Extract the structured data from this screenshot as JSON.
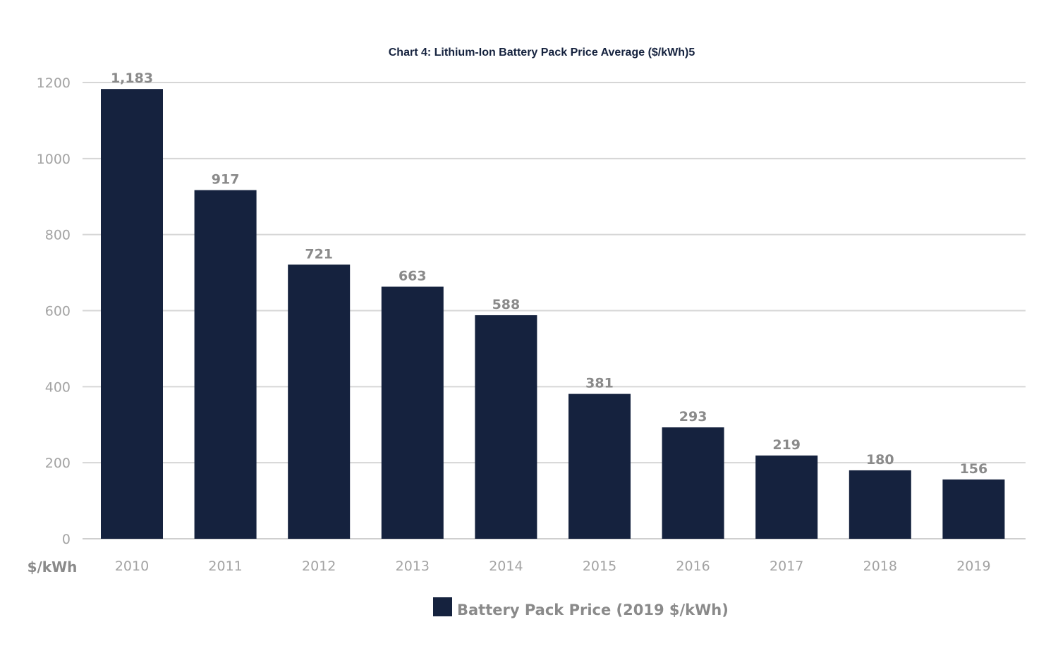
{
  "chart_data": {
    "type": "bar",
    "title": "Chart 4: Lithium-Ion Battery Pack Price Average ($/kWh)5",
    "xlabel": "",
    "ylabel": "$/kWh",
    "categories": [
      "2010",
      "2011",
      "2012",
      "2013",
      "2014",
      "2015",
      "2016",
      "2017",
      "2018",
      "2019"
    ],
    "series": [
      {
        "name": "Battery Pack Price (2019 $/kWh)",
        "values": [
          1183,
          917,
          721,
          663,
          588,
          381,
          293,
          219,
          180,
          156
        ],
        "labels": [
          "1,183",
          "917",
          "721",
          "663",
          "588",
          "381",
          "293",
          "219",
          "180",
          "156"
        ],
        "color": "#15223e"
      }
    ],
    "ylim": [
      0,
      1200
    ],
    "yticks": [
      "0",
      "200",
      "400",
      "600",
      "800",
      "1000",
      "1200"
    ],
    "grid": true,
    "legend": "bottom"
  },
  "colors": {
    "bar": "#15223e",
    "grid": "#d6d6d6",
    "tick_text": "#a3a3a3",
    "label_text": "#8a8a8a"
  }
}
